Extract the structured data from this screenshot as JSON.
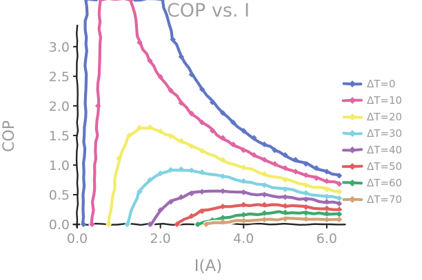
{
  "chart_data": {
    "type": "line",
    "title": "COP vs. I",
    "xlabel": "I(A)",
    "ylabel": "COP",
    "xlim": [
      0,
      6.3
    ],
    "ylim": [
      0,
      3.3
    ],
    "grid": false,
    "style": "xkcd-sketch",
    "text_color": "#9a9a9a",
    "spine_color": "#222222",
    "legend_position": "right",
    "xticks": [
      {
        "value": 0.0,
        "label": "0.0"
      },
      {
        "value": 2.0,
        "label": "2.0"
      },
      {
        "value": 4.0,
        "label": "4.0"
      },
      {
        "value": 6.0,
        "label": "6.0"
      }
    ],
    "yticks": [
      {
        "value": 0.0,
        "label": "0.0"
      },
      {
        "value": 0.5,
        "label": "0.5"
      },
      {
        "value": 1.0,
        "label": "1.0"
      },
      {
        "value": 1.5,
        "label": "1.5"
      },
      {
        "value": 2.0,
        "label": "2.0"
      },
      {
        "value": 2.5,
        "label": "2.5"
      },
      {
        "value": 3.0,
        "label": "3.0"
      }
    ],
    "series": [
      {
        "name": "ΔT=0",
        "color": "#6076c5",
        "points": [
          [
            0.15,
            0
          ],
          [
            0.22,
            3.8
          ],
          [
            2.05,
            3.8
          ],
          [
            2.3,
            3.12
          ],
          [
            2.5,
            2.83
          ],
          [
            2.75,
            2.53
          ],
          [
            3.0,
            2.28
          ],
          [
            3.25,
            2.06
          ],
          [
            3.5,
            1.88
          ],
          [
            3.75,
            1.72
          ],
          [
            4.0,
            1.58
          ],
          [
            4.25,
            1.46
          ],
          [
            4.5,
            1.35
          ],
          [
            4.75,
            1.25
          ],
          [
            5.0,
            1.17
          ],
          [
            5.25,
            1.09
          ],
          [
            5.5,
            1.02
          ],
          [
            5.75,
            0.95
          ],
          [
            6.0,
            0.89
          ],
          [
            6.3,
            0.82
          ]
        ]
      },
      {
        "name": "ΔT=10",
        "color": "#e264a2",
        "points": [
          [
            0.36,
            0
          ],
          [
            0.5,
            2.0
          ],
          [
            0.56,
            3.8
          ],
          [
            1.3,
            3.8
          ],
          [
            1.5,
            3.07
          ],
          [
            1.75,
            2.76
          ],
          [
            2.0,
            2.49
          ],
          [
            2.25,
            2.26
          ],
          [
            2.5,
            2.05
          ],
          [
            2.75,
            1.87
          ],
          [
            3.0,
            1.72
          ],
          [
            3.25,
            1.58
          ],
          [
            3.5,
            1.46
          ],
          [
            3.75,
            1.35
          ],
          [
            4.0,
            1.25
          ],
          [
            4.25,
            1.17
          ],
          [
            4.5,
            1.09
          ],
          [
            4.75,
            1.02
          ],
          [
            5.0,
            0.95
          ],
          [
            5.25,
            0.89
          ],
          [
            5.5,
            0.83
          ],
          [
            5.75,
            0.78
          ],
          [
            6.0,
            0.73
          ],
          [
            6.3,
            0.68
          ]
        ]
      },
      {
        "name": "ΔT=20",
        "color": "#f2ec6a",
        "points": [
          [
            0.75,
            0
          ],
          [
            1.0,
            1.11
          ],
          [
            1.25,
            1.5
          ],
          [
            1.5,
            1.63
          ],
          [
            1.75,
            1.64
          ],
          [
            2.0,
            1.57
          ],
          [
            2.25,
            1.49
          ],
          [
            2.5,
            1.41
          ],
          [
            2.75,
            1.32
          ],
          [
            3.0,
            1.24
          ],
          [
            3.5,
            1.09
          ],
          [
            4.0,
            0.96
          ],
          [
            4.5,
            0.85
          ],
          [
            5.0,
            0.75
          ],
          [
            5.5,
            0.66
          ],
          [
            6.0,
            0.59
          ],
          [
            6.3,
            0.55
          ]
        ]
      },
      {
        "name": "ΔT=30",
        "color": "#7fd2e2",
        "points": [
          [
            1.2,
            0
          ],
          [
            1.5,
            0.55
          ],
          [
            1.75,
            0.75
          ],
          [
            2.0,
            0.86
          ],
          [
            2.25,
            0.92
          ],
          [
            2.5,
            0.93
          ],
          [
            2.75,
            0.91
          ],
          [
            3.0,
            0.88
          ],
          [
            3.5,
            0.81
          ],
          [
            4.0,
            0.73
          ],
          [
            4.5,
            0.66
          ],
          [
            5.0,
            0.59
          ],
          [
            5.5,
            0.53
          ],
          [
            6.0,
            0.47
          ],
          [
            6.3,
            0.44
          ]
        ]
      },
      {
        "name": "ΔT=40",
        "color": "#9c6bb3",
        "points": [
          [
            1.75,
            0
          ],
          [
            2.0,
            0.24
          ],
          [
            2.25,
            0.38
          ],
          [
            2.5,
            0.46
          ],
          [
            2.75,
            0.52
          ],
          [
            3.0,
            0.55
          ],
          [
            3.5,
            0.56
          ],
          [
            4.0,
            0.54
          ],
          [
            4.5,
            0.5
          ],
          [
            5.0,
            0.46
          ],
          [
            5.5,
            0.42
          ],
          [
            6.0,
            0.38
          ],
          [
            6.3,
            0.35
          ]
        ]
      },
      {
        "name": "ΔT=50",
        "color": "#e25d5d",
        "points": [
          [
            2.4,
            0
          ],
          [
            2.75,
            0.14
          ],
          [
            3.0,
            0.22
          ],
          [
            3.5,
            0.3
          ],
          [
            4.0,
            0.33
          ],
          [
            4.5,
            0.33
          ],
          [
            5.0,
            0.31
          ],
          [
            5.5,
            0.29
          ],
          [
            6.0,
            0.27
          ],
          [
            6.3,
            0.25
          ]
        ]
      },
      {
        "name": "ΔT=60",
        "color": "#3ea96c",
        "points": [
          [
            2.9,
            0
          ],
          [
            3.25,
            0.07
          ],
          [
            3.5,
            0.11
          ],
          [
            4.0,
            0.16
          ],
          [
            4.5,
            0.19
          ],
          [
            5.0,
            0.2
          ],
          [
            5.5,
            0.19
          ],
          [
            6.0,
            0.18
          ],
          [
            6.3,
            0.17
          ]
        ]
      },
      {
        "name": "ΔT=70",
        "color": "#d3a376",
        "points": [
          [
            3.1,
            0
          ],
          [
            3.5,
            0.04
          ],
          [
            4.0,
            0.06
          ],
          [
            4.5,
            0.08
          ],
          [
            5.0,
            0.09
          ],
          [
            5.5,
            0.09
          ],
          [
            6.0,
            0.08
          ],
          [
            6.3,
            0.08
          ]
        ]
      }
    ]
  }
}
